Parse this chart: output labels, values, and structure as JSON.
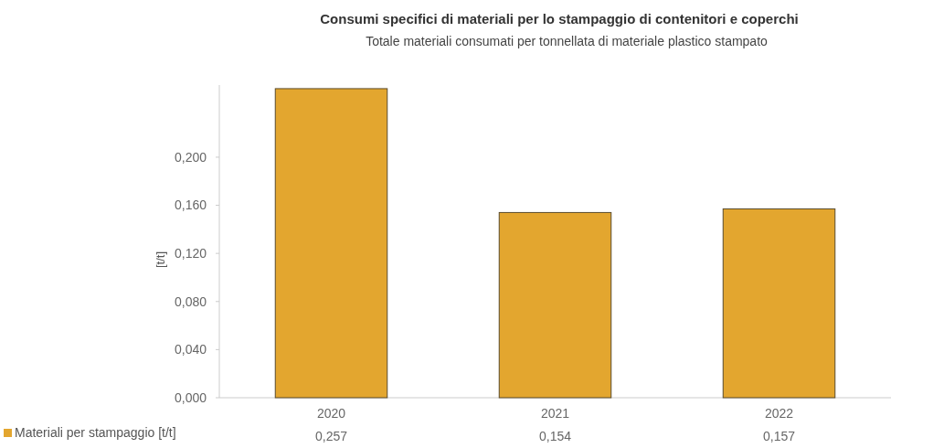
{
  "chart_data": {
    "type": "bar",
    "title": "Consumi specifici di materiali per lo stampaggio di contenitori e coperchi",
    "subtitle": "Totale materiali consumati per tonnellata di materiale plastico stampato",
    "ylabel": "[t/t]",
    "categories": [
      "2020",
      "2021",
      "2022"
    ],
    "series": [
      {
        "name": "Materiali per stampaggio [t/t]",
        "color": "#e3a62f",
        "values": [
          0.257,
          0.154,
          0.157
        ],
        "value_labels": [
          "0,257",
          "0,154",
          "0,157"
        ]
      }
    ],
    "ylim": [
      0,
      0.26
    ],
    "yticks": [
      {
        "value": 0,
        "label": "0,000"
      },
      {
        "value": 0.04,
        "label": "0,040"
      },
      {
        "value": 0.08,
        "label": "0,080"
      },
      {
        "value": 0.12,
        "label": "0,120"
      },
      {
        "value": 0.16,
        "label": "0,160"
      },
      {
        "value": 0.2,
        "label": "0,200"
      }
    ],
    "legend": "bottom left"
  }
}
